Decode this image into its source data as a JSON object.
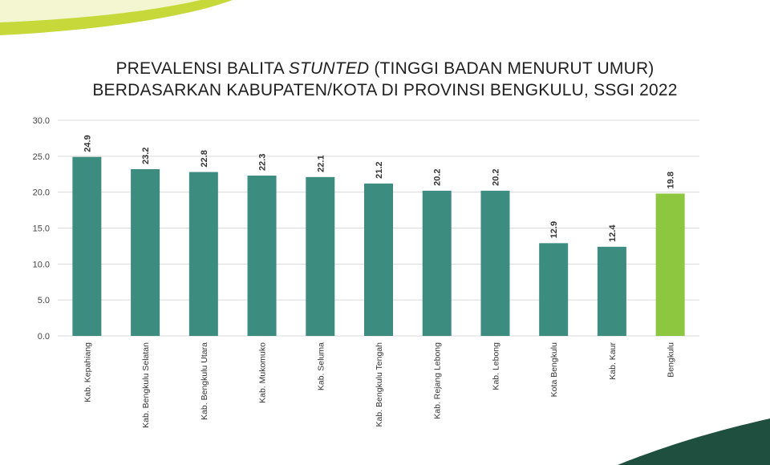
{
  "header": {
    "title_line1_a": "PREVALENSI BALITA ",
    "title_line1_italic": "STUNTED",
    "title_line1_b": " (TINGGI BADAN MENURUT UMUR)",
    "title_line2": "BERDASARKAN KABUPATEN/KOTA DI PROVINSI BENGKULU, SSGI 2022"
  },
  "colors": {
    "bar": "#3d8c80",
    "highlight_bar": "#8dc63f",
    "grid": "#d9d9d9",
    "deco_green": "#c6d83a",
    "deco_dark": "#1f4f3e"
  },
  "chart_data": {
    "type": "bar",
    "title": "PREVALENSI BALITA STUNTED (TINGGI BADAN MENURUT UMUR) BERDASARKAN KABUPATEN/KOTA DI PROVINSI BENGKULU, SSGI 2022",
    "categories": [
      "Kab. Kepahiang",
      "Kab. Bengkulu Selatan",
      "Kab. Bengkulu Utara",
      "Kab. Mukomuko",
      "Kab. Seluma",
      "Kab. Bengkulu Tengah",
      "Kab. Rejang Lebong",
      "Kab. Lebong",
      "Kota Bengkulu",
      "Kab. Kaur",
      "Bengkulu"
    ],
    "values": [
      24.9,
      23.2,
      22.8,
      22.3,
      22.1,
      21.2,
      20.2,
      20.2,
      12.9,
      12.4,
      19.8
    ],
    "value_labels": [
      "24.9",
      "23.2",
      "22.8",
      "22.3",
      "22.1",
      "21.2",
      "20.2",
      "20.2",
      "12.9",
      "12.4",
      "19.8"
    ],
    "highlight": [
      "Bengkulu"
    ],
    "yticks": [
      "0.0",
      "5.0",
      "10.0",
      "15.0",
      "20.0",
      "25.0",
      "30.0"
    ],
    "ylim": [
      0,
      30
    ],
    "grid": true,
    "xlabel": "",
    "ylabel": ""
  }
}
